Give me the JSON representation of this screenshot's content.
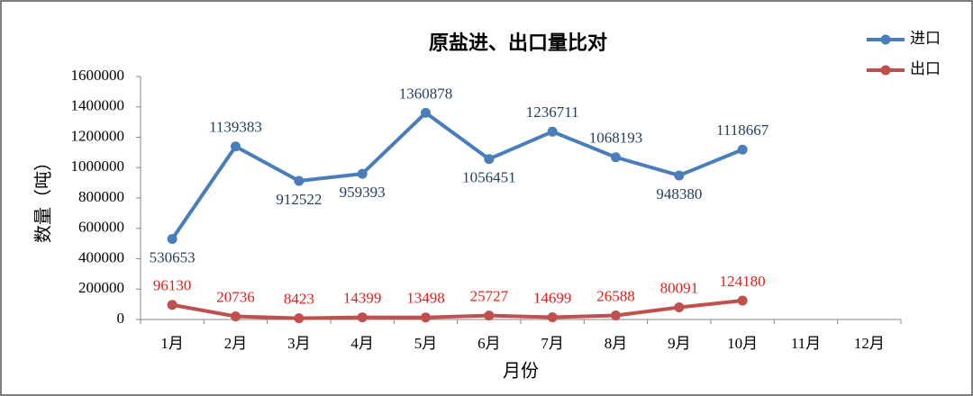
{
  "chart_data": {
    "type": "line",
    "title": "原盐进、出口量比对",
    "x_label": "月份",
    "y_label": "数量（吨）",
    "categories": [
      "1月",
      "2月",
      "3月",
      "4月",
      "5月",
      "6月",
      "7月",
      "8月",
      "9月",
      "10月",
      "11月",
      "12月"
    ],
    "series": [
      {
        "name": "进口",
        "color": "#4a7ebb",
        "label_color": "#243f60",
        "values": [
          530653,
          1139383,
          912522,
          959393,
          1360878,
          1056451,
          1236711,
          1068193,
          948380,
          1118667,
          null,
          null
        ]
      },
      {
        "name": "出口",
        "color": "#c0504d",
        "label_color": "#e0201b",
        "values": [
          96130,
          20736,
          8423,
          14399,
          13498,
          25727,
          14699,
          26588,
          80091,
          124180,
          null,
          null
        ]
      }
    ],
    "ylim": [
      0,
      1600000
    ],
    "yticks": [
      0,
      200000,
      400000,
      600000,
      800000,
      1000000,
      1200000,
      1400000,
      1600000
    ],
    "grid": false,
    "legend": "top-right"
  }
}
